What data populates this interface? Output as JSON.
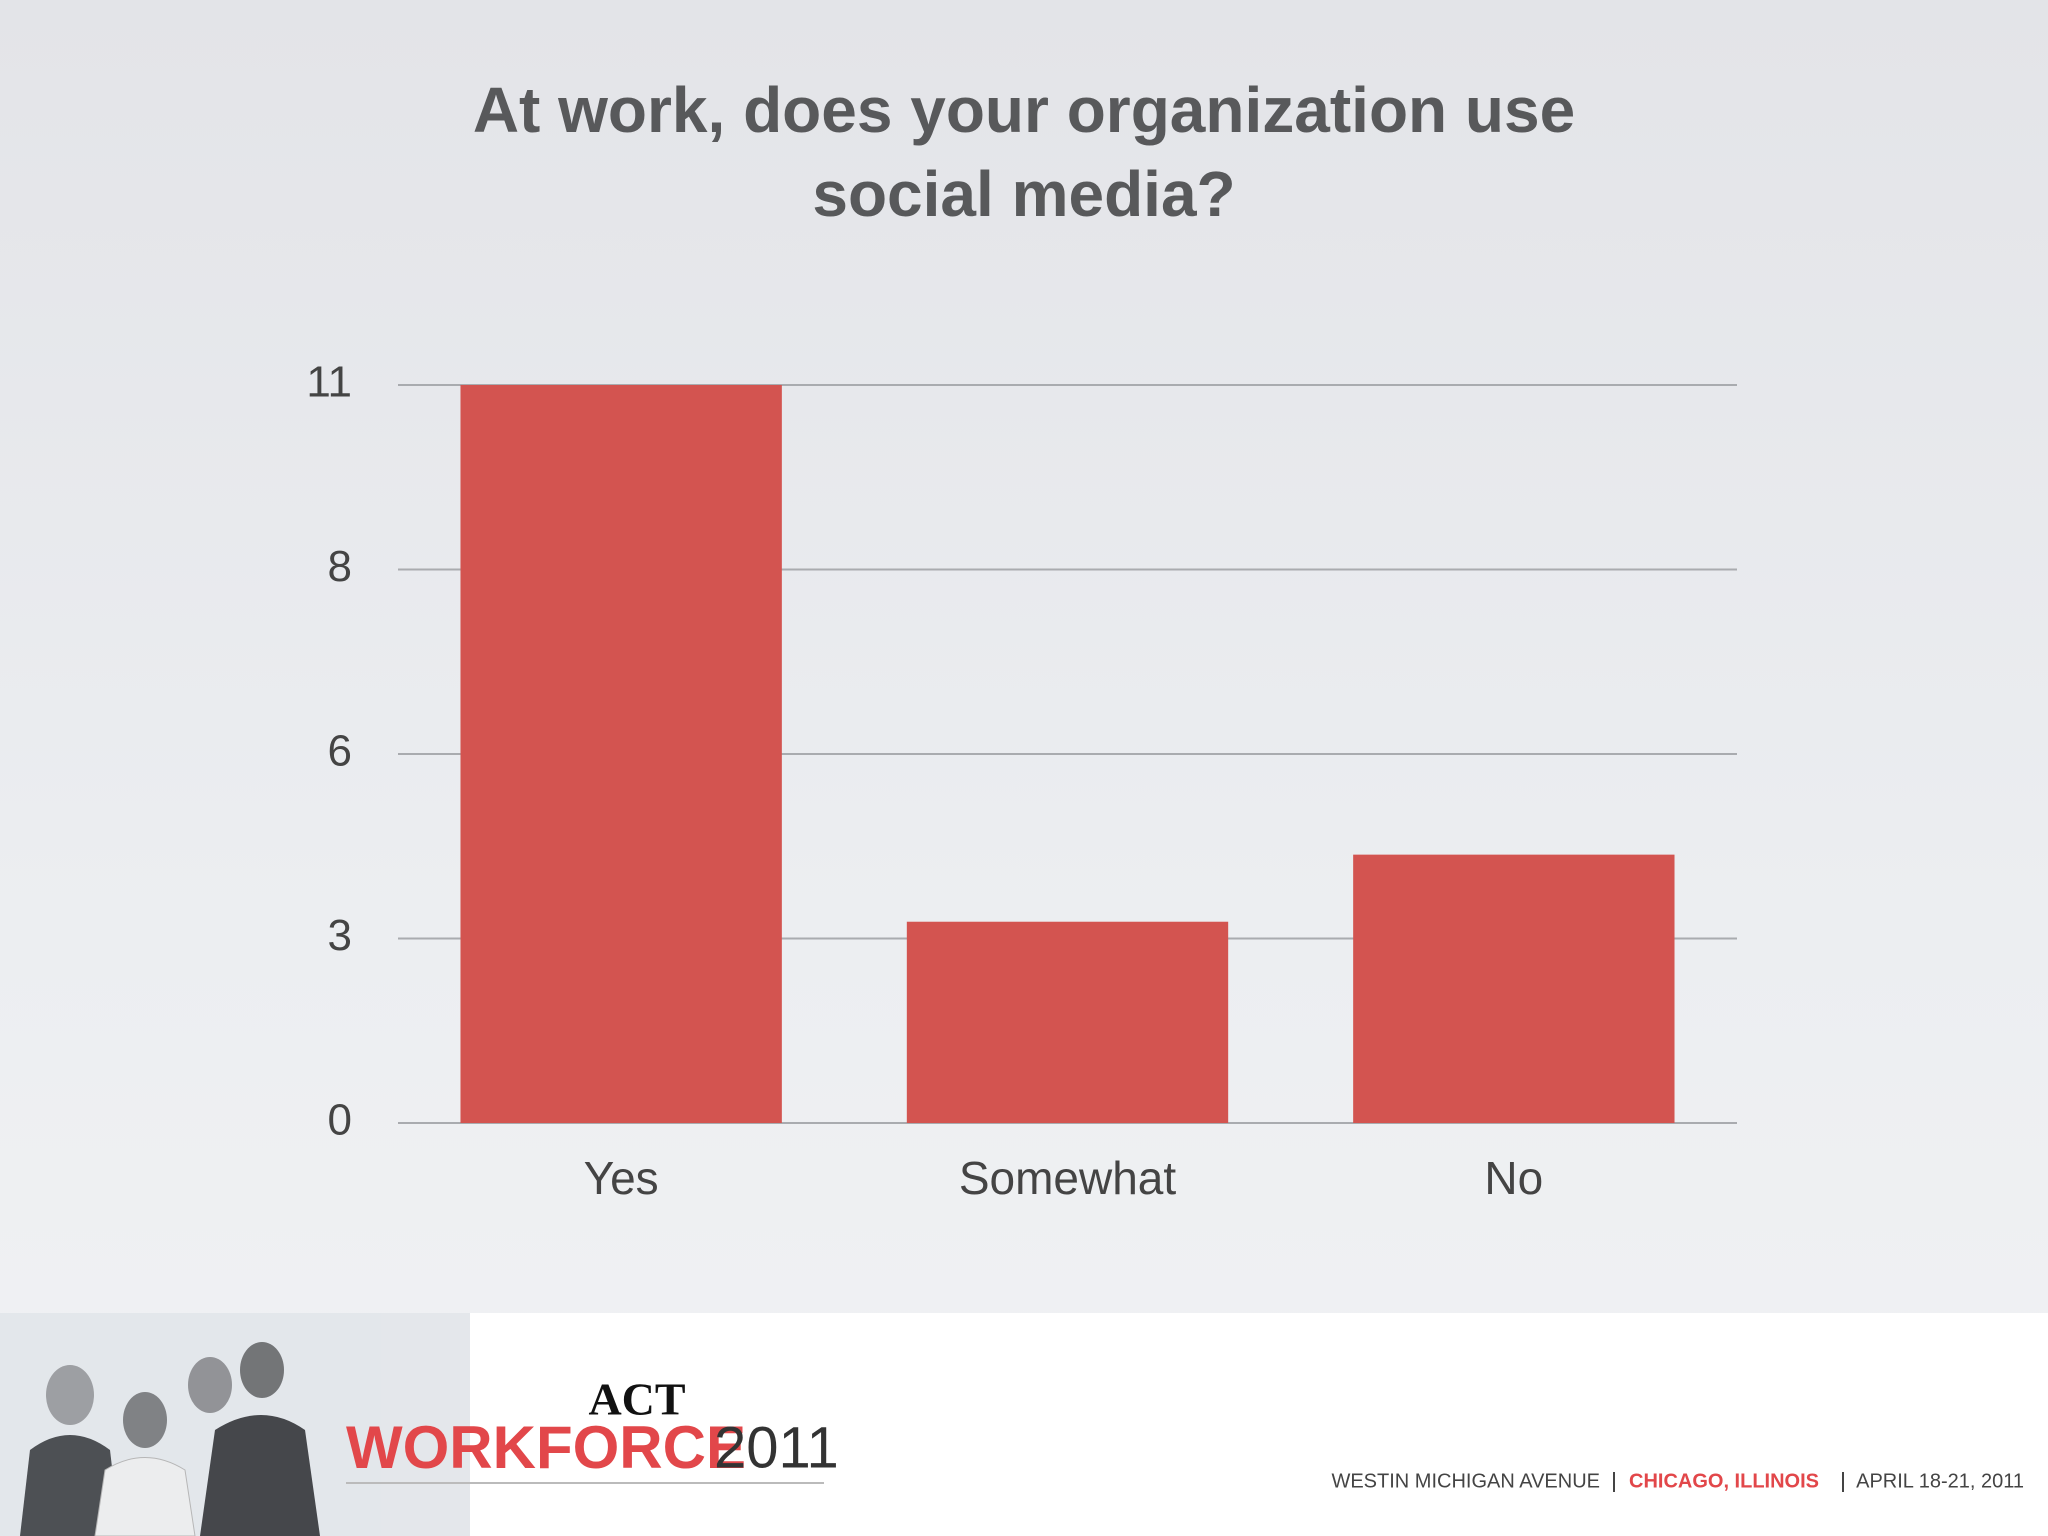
{
  "chart_data": {
    "type": "bar",
    "title": "At work, does your organization use social media?",
    "categories": [
      "Yes",
      "Somewhat",
      "No"
    ],
    "values": [
      11,
      3,
      4
    ],
    "color": "#d35450",
    "ylim": [
      0,
      11
    ],
    "yticks": [
      0,
      {
        "value": 2.75,
        "label": "3"
      },
      {
        "value": 5.5,
        "label": "6"
      },
      {
        "value": 8.25,
        "label": "8"
      },
      11
    ],
    "grid": true
  },
  "footer": {
    "brand": "ACT",
    "event": "WORKFORCE",
    "year": "2011",
    "venue": "WESTIN MICHIGAN AVENUE",
    "city": "CHICAGO, ILLINOIS",
    "dates": "APRIL 18-21, 2011"
  }
}
